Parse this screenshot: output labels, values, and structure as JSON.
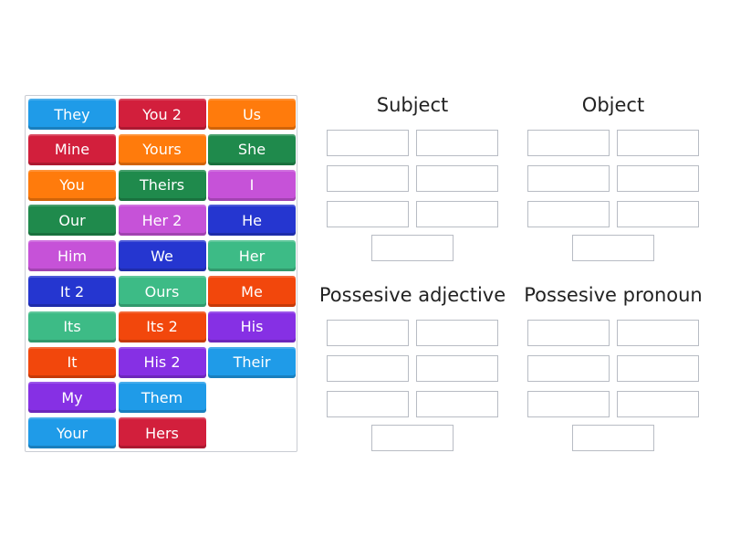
{
  "colors": {
    "blue": "#1f9be8",
    "red": "#d21f3c",
    "orange": "#ff7b0c",
    "darkgreen": "#1f8a4c",
    "magenta": "#c652d8",
    "navy": "#2536d0",
    "teal": "#3dbb86",
    "orangered": "#f2470c",
    "purple": "#8630e4"
  },
  "tiles": [
    {
      "label": "They",
      "color": "blue"
    },
    {
      "label": "You 2",
      "color": "red"
    },
    {
      "label": "Us",
      "color": "orange"
    },
    {
      "label": "Mine",
      "color": "red"
    },
    {
      "label": "Yours",
      "color": "orange"
    },
    {
      "label": "She",
      "color": "darkgreen"
    },
    {
      "label": "You",
      "color": "orange"
    },
    {
      "label": "Theirs",
      "color": "darkgreen"
    },
    {
      "label": "I",
      "color": "magenta"
    },
    {
      "label": "Our",
      "color": "darkgreen"
    },
    {
      "label": "Her 2",
      "color": "magenta"
    },
    {
      "label": "He",
      "color": "navy"
    },
    {
      "label": "Him",
      "color": "magenta"
    },
    {
      "label": "We",
      "color": "navy"
    },
    {
      "label": "Her",
      "color": "teal"
    },
    {
      "label": "It 2",
      "color": "navy"
    },
    {
      "label": "Ours",
      "color": "teal"
    },
    {
      "label": "Me",
      "color": "orangered"
    },
    {
      "label": "Its",
      "color": "teal"
    },
    {
      "label": "Its 2",
      "color": "orangered"
    },
    {
      "label": "His",
      "color": "purple"
    },
    {
      "label": "It",
      "color": "orangered"
    },
    {
      "label": "His 2",
      "color": "purple"
    },
    {
      "label": "Their",
      "color": "blue"
    },
    {
      "label": "My",
      "color": "purple"
    },
    {
      "label": "Them",
      "color": "blue"
    },
    {
      "label": "Your",
      "color": "blue"
    },
    {
      "label": "Hers",
      "color": "red"
    }
  ],
  "groups": [
    {
      "title": "Subject"
    },
    {
      "title": "Object"
    },
    {
      "title": "Possesive adjective"
    },
    {
      "title": "Possesive pronoun"
    }
  ]
}
